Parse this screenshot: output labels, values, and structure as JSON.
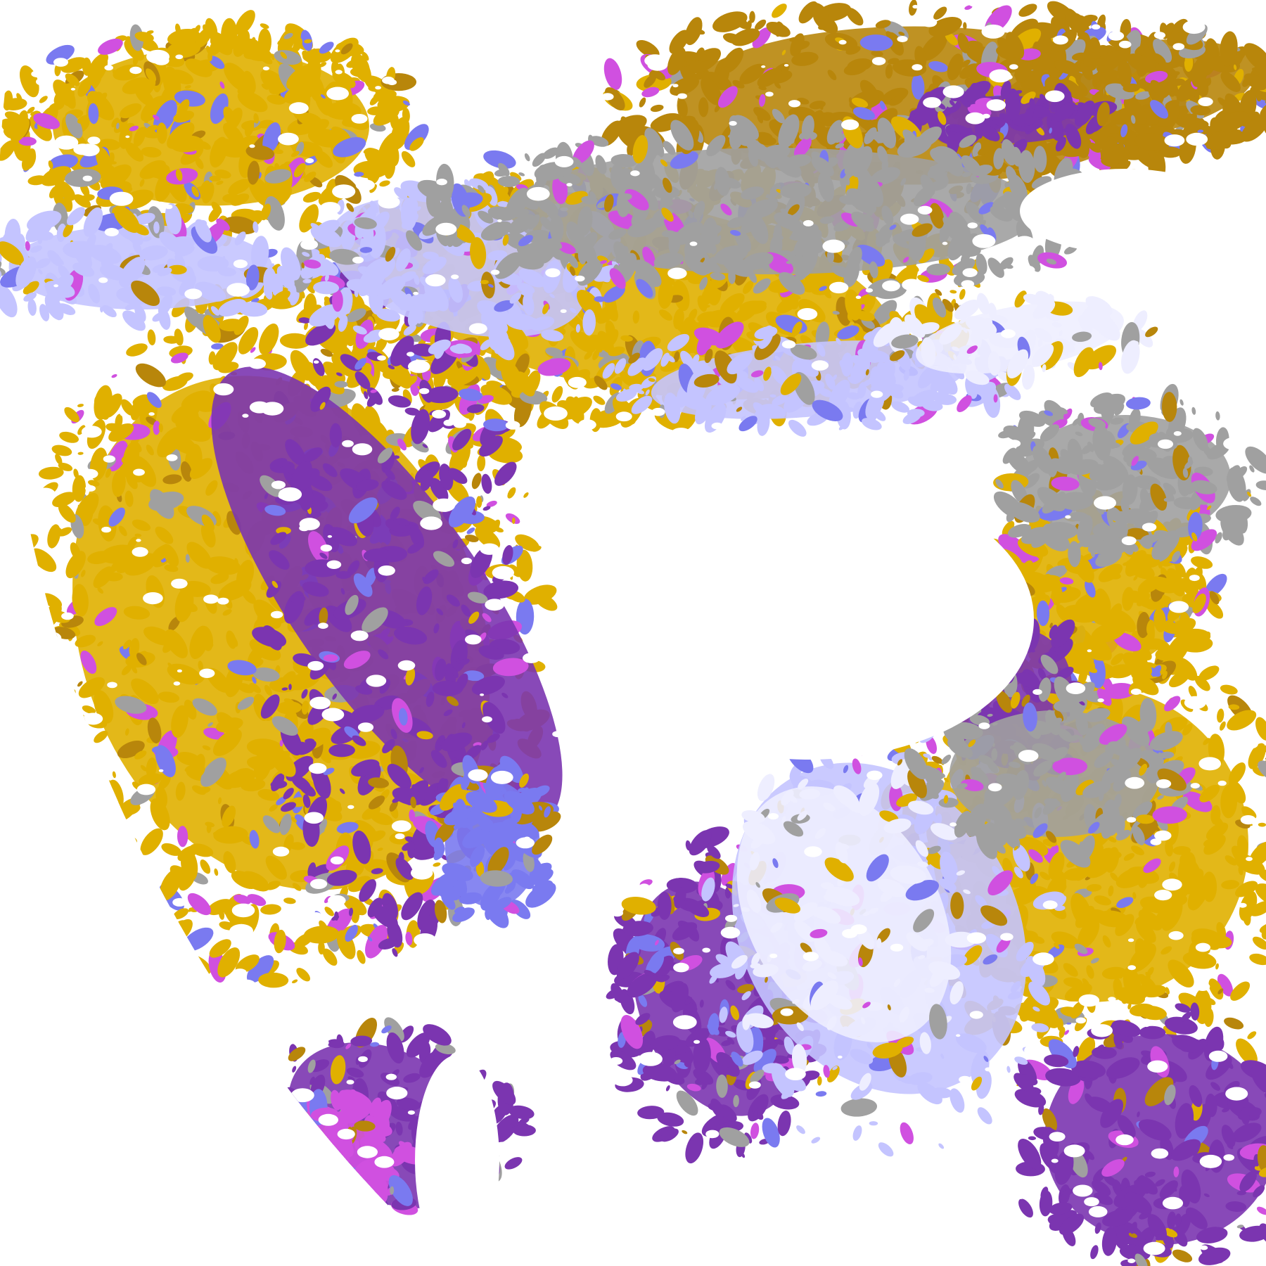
{
  "image": {
    "type": "satellite cloud-classification map",
    "background_color": "#ffffff",
    "palette": {
      "clear": "#ffffff",
      "gold": "#e0b000",
      "dark_gold": "#b8860b",
      "purple": "#7b35b0",
      "magenta": "#d050e0",
      "periwinkle": "#7a7af0",
      "lavender": "#c4c4ff",
      "pale_lavender": "#eeeeff",
      "gray": "#a0a0a0"
    }
  }
}
